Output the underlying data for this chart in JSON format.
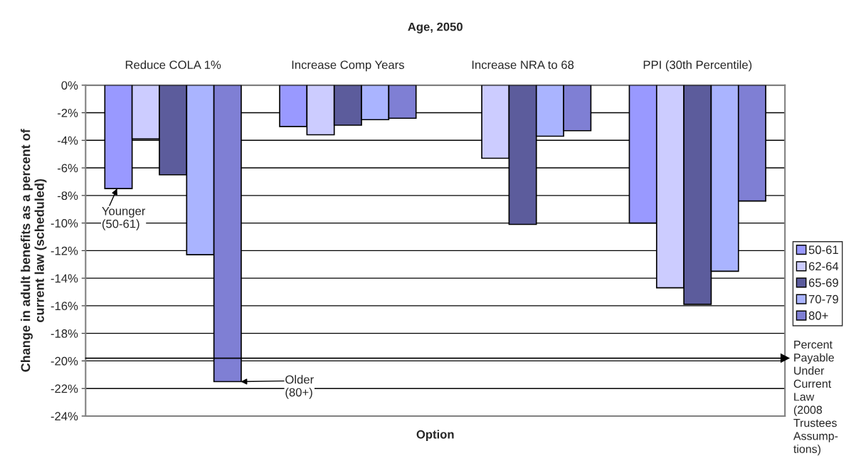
{
  "chart_data": {
    "type": "bar",
    "title": "Age, 2050",
    "xlabel": "Option",
    "ylabel": "Change in adult benefits as a percent of\ncurrent law (scheduled)",
    "categories": [
      "Reduce COLA 1%",
      "Increase Comp Years",
      "Increase NRA to 68",
      "PPI (30th Percentile)"
    ],
    "series": [
      {
        "name": "50-61",
        "color": "#9999ff",
        "values": [
          -7.5,
          -3.0,
          null,
          -10.0
        ]
      },
      {
        "name": "62-64",
        "color": "#ccccff",
        "values": [
          -3.9,
          -3.6,
          -5.3,
          -14.7
        ]
      },
      {
        "name": "65-69",
        "color": "#5c5c9c",
        "values": [
          -6.5,
          -2.9,
          -10.1,
          -15.9
        ]
      },
      {
        "name": "70-79",
        "color": "#aab4ff",
        "values": [
          -12.3,
          -2.5,
          -3.7,
          -13.5
        ]
      },
      {
        "name": "80+",
        "color": "#7f7fd4",
        "values": [
          -21.5,
          -2.4,
          -3.3,
          -8.4
        ]
      }
    ],
    "ylim": [
      -24,
      0
    ],
    "yticks": [
      {
        "value": 0,
        "label": "0%"
      },
      {
        "value": -2,
        "label": "-2%"
      },
      {
        "value": -4,
        "label": "-4%"
      },
      {
        "value": -6,
        "label": "-6%"
      },
      {
        "value": -8,
        "label": "-8%"
      },
      {
        "value": -10,
        "label": "-10%"
      },
      {
        "value": -12,
        "label": "-12%"
      },
      {
        "value": -14,
        "label": "-14%"
      },
      {
        "value": -16,
        "label": "-16%"
      },
      {
        "value": -18,
        "label": "-18%"
      },
      {
        "value": -20,
        "label": "-20%"
      },
      {
        "value": -22,
        "label": "-22%"
      },
      {
        "value": -24,
        "label": "-24%"
      }
    ],
    "grid": "y",
    "legend": "right",
    "ref_lines": [
      {
        "axis": "y",
        "value": -19.8,
        "label": "Percent\nPayable\nUnder\nCurrent\nLaw\n(2008\nTrustees\nAssump-\ntions)"
      }
    ],
    "annotations": [
      {
        "text": "Younger\n(50-61)",
        "y": -7.5
      },
      "Older\n(80+)"
    ]
  }
}
